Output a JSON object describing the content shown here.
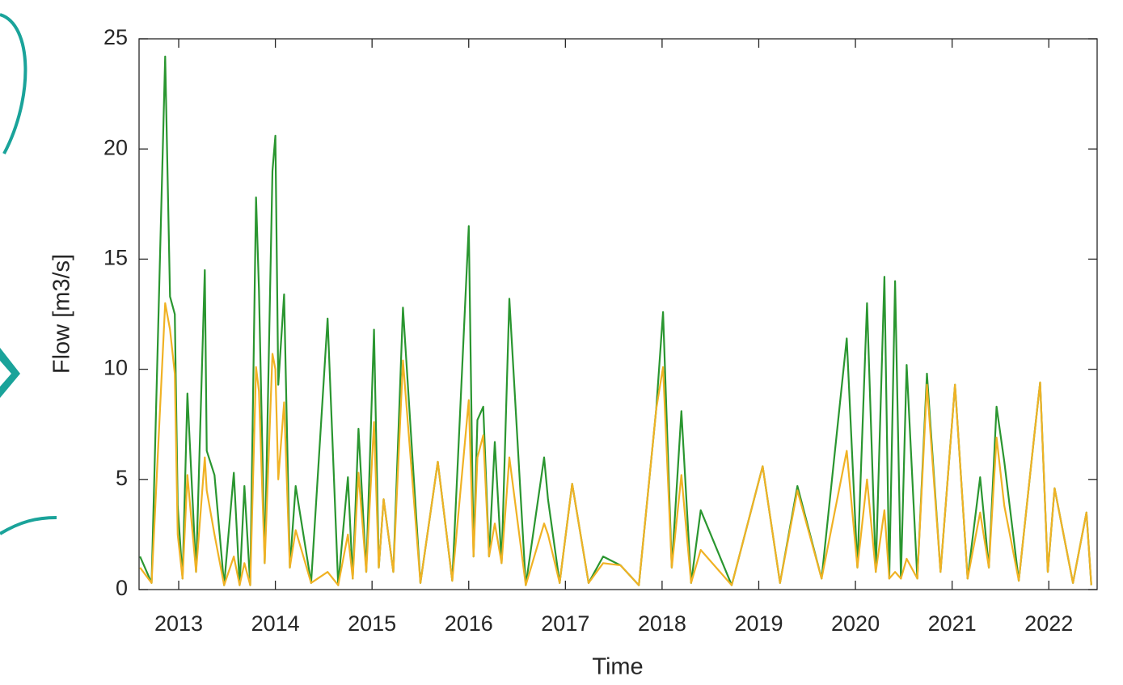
{
  "chart_data": {
    "type": "line",
    "x_label": "Time",
    "y_label": "Flow [m3/s]",
    "xlim": [
      2012.59,
      2022.5
    ],
    "ylim": [
      0,
      25
    ],
    "xticks": [
      2013,
      2014,
      2015,
      2016,
      2017,
      2018,
      2019,
      2020,
      2021,
      2022
    ],
    "yticks": [
      0,
      5,
      10,
      15,
      20,
      25
    ],
    "grid": false,
    "x": [
      2012.6,
      2012.72,
      2012.86,
      2012.91,
      2012.96,
      2012.99,
      2013.04,
      2013.09,
      2013.18,
      2013.27,
      2013.29,
      2013.37,
      2013.47,
      2013.57,
      2013.63,
      2013.68,
      2013.74,
      2013.8,
      2013.83,
      2013.89,
      2013.97,
      2014.0,
      2014.03,
      2014.09,
      2014.15,
      2014.21,
      2014.37,
      2014.54,
      2014.65,
      2014.75,
      2014.8,
      2014.86,
      2014.94,
      2015.02,
      2015.07,
      2015.12,
      2015.22,
      2015.32,
      2015.5,
      2015.68,
      2015.83,
      2016.0,
      2016.05,
      2016.09,
      2016.15,
      2016.21,
      2016.27,
      2016.34,
      2016.42,
      2016.59,
      2016.78,
      2016.82,
      2016.94,
      2017.07,
      2017.24,
      2017.39,
      2017.57,
      2017.76,
      2017.94,
      2018.01,
      2018.1,
      2018.2,
      2018.3,
      2018.4,
      2018.72,
      2019.04,
      2019.22,
      2019.4,
      2019.65,
      2019.91,
      2020.02,
      2020.12,
      2020.21,
      2020.3,
      2020.35,
      2020.41,
      2020.47,
      2020.53,
      2020.64,
      2020.74,
      2020.88,
      2021.03,
      2021.16,
      2021.29,
      2021.38,
      2021.46,
      2021.54,
      2021.69,
      2021.85,
      2021.91,
      2021.99,
      2022.06,
      2022.25,
      2022.39,
      2022.44
    ],
    "series": [
      {
        "color": "#2a9630",
        "values": [
          1.5,
          0.3,
          24.2,
          13.3,
          12.5,
          3.8,
          0.5,
          8.9,
          0.8,
          14.5,
          6.3,
          5.2,
          0.2,
          5.3,
          0.2,
          4.7,
          0.2,
          17.8,
          13.6,
          1.2,
          19,
          20.6,
          9.3,
          13.4,
          1,
          4.7,
          0.3,
          12.3,
          0.2,
          5.1,
          0.5,
          7.3,
          0.8,
          11.8,
          1,
          4.1,
          0.8,
          12.8,
          0.3,
          5.8,
          0.4,
          16.5,
          1.5,
          7.7,
          8.3,
          1.5,
          6.7,
          1.2,
          13.2,
          0.2,
          6,
          4.1,
          0.3,
          4.8,
          0.3,
          1.5,
          1.1,
          0.2,
          8.2,
          12.6,
          1,
          8.1,
          0.3,
          3.6,
          0.2,
          5.6,
          0.3,
          4.7,
          0.5,
          11.4,
          1,
          13,
          0.8,
          14.2,
          0.5,
          14,
          0.5,
          10.2,
          0.5,
          9.8,
          0.8,
          9.3,
          0.5,
          5.1,
          1,
          8.3,
          5.8,
          0.4,
          7,
          9.4,
          0.8,
          4.6,
          0.3,
          3.5,
          0.2
        ]
      },
      {
        "color": "#f0b224",
        "values": [
          1,
          0.3,
          13,
          11.8,
          9.8,
          2.5,
          0.5,
          5.2,
          0.8,
          6,
          4.5,
          2.5,
          0.2,
          1.5,
          0.2,
          1.2,
          0.2,
          10.1,
          9,
          1.2,
          10.7,
          10,
          5,
          8.5,
          1,
          2.7,
          0.3,
          0.8,
          0.2,
          2.5,
          0.5,
          5.3,
          0.8,
          7.6,
          1,
          4.1,
          0.8,
          10.4,
          0.3,
          5.8,
          0.4,
          8.6,
          1.5,
          6,
          7,
          1.5,
          3,
          1.2,
          6,
          0.2,
          3,
          2.5,
          0.3,
          4.8,
          0.3,
          1.2,
          1.1,
          0.2,
          8.2,
          10.1,
          1,
          5.2,
          0.3,
          1.8,
          0.2,
          5.6,
          0.3,
          4.5,
          0.5,
          6.3,
          1,
          5,
          0.8,
          3.6,
          0.5,
          0.8,
          0.5,
          1.4,
          0.5,
          9.3,
          0.8,
          9.3,
          0.5,
          3.5,
          1,
          6.9,
          3.8,
          0.4,
          7,
          9.4,
          0.8,
          4.6,
          0.3,
          3.5,
          0.2
        ]
      }
    ]
  }
}
